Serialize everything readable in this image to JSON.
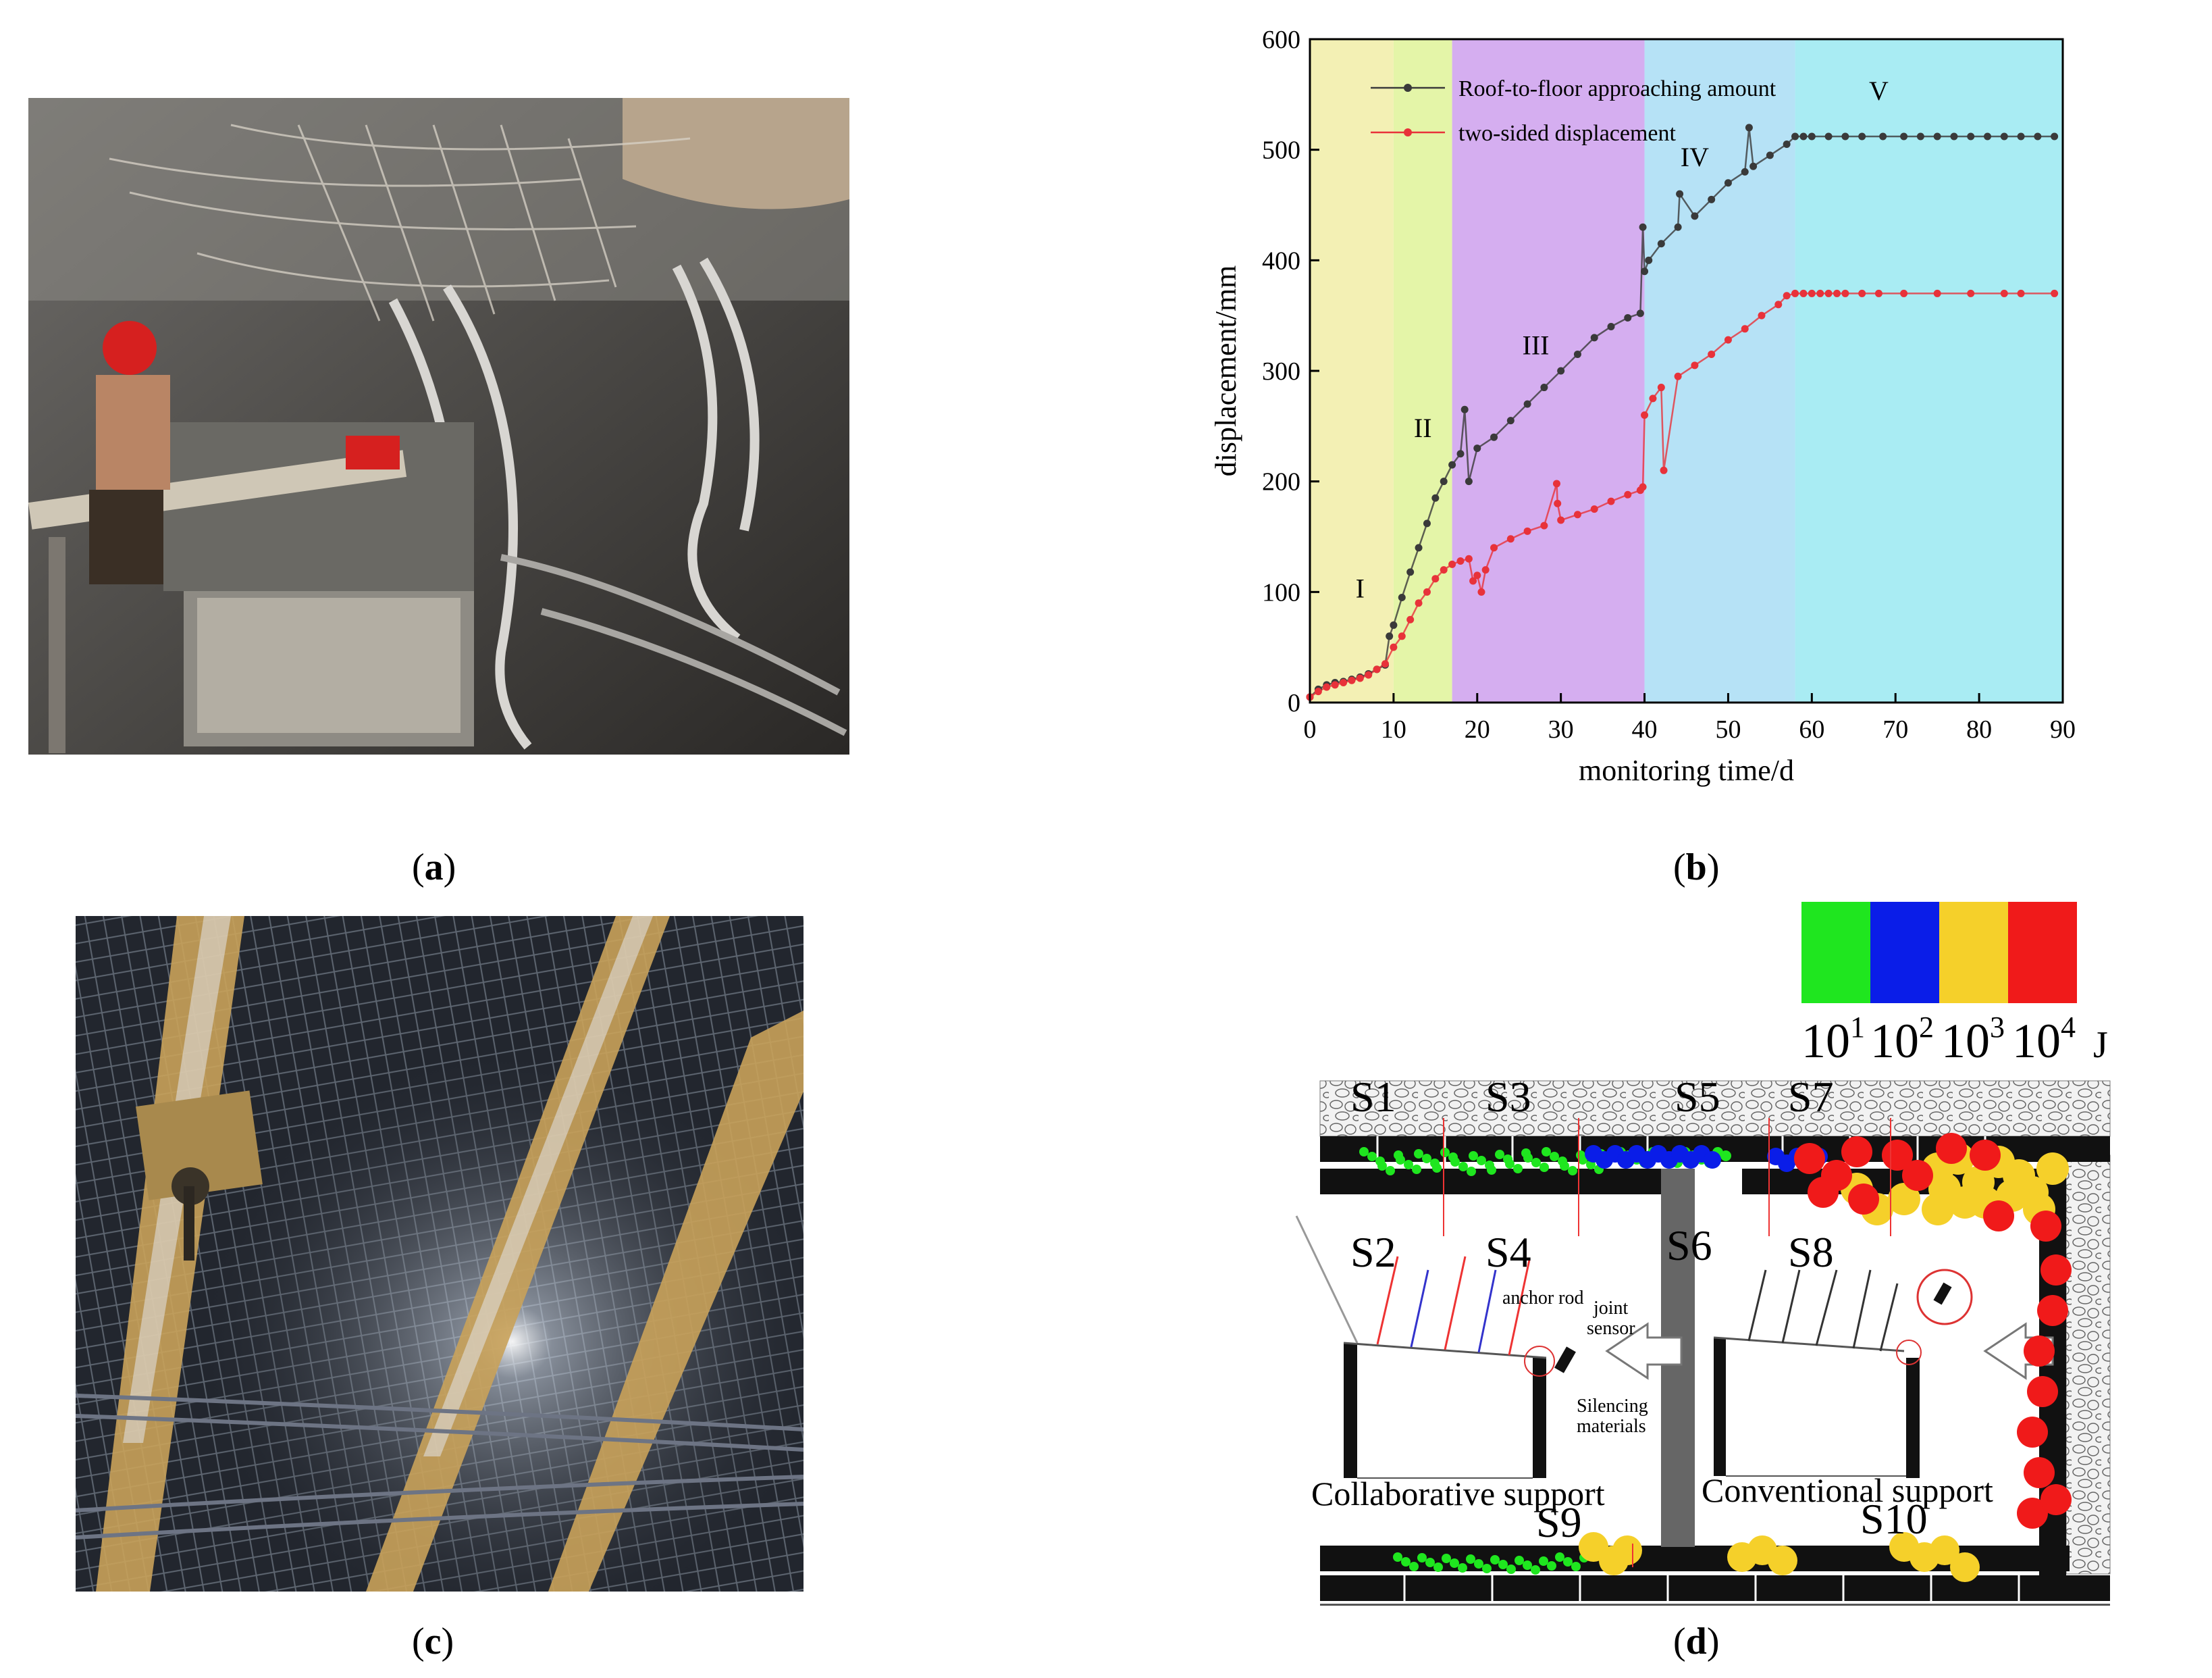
{
  "captions": {
    "a": {
      "open": "(",
      "letter": "a",
      "close": ")"
    },
    "b": {
      "open": "(",
      "letter": "b",
      "close": ")"
    },
    "c": {
      "open": "(",
      "letter": "c",
      "close": ")"
    },
    "d": {
      "open": "(",
      "letter": "d",
      "close": ")"
    }
  },
  "chart_data": {
    "type": "line",
    "xlabel": "monitoring time/d",
    "ylabel": "displacement/mm",
    "xlim": [
      0,
      90
    ],
    "ylim": [
      0,
      600
    ],
    "xticks": [
      0,
      10,
      20,
      30,
      40,
      50,
      60,
      70,
      80,
      90
    ],
    "yticks": [
      0,
      100,
      200,
      300,
      400,
      500,
      600
    ],
    "legend_position": "top-left",
    "stages": [
      {
        "label": "I",
        "x0": 0,
        "x1": 10,
        "color": "#f3f0b4",
        "label_x": 6,
        "label_y": 95
      },
      {
        "label": "II",
        "x0": 10,
        "x1": 17,
        "color": "#e4f5a8",
        "label_x": 13.5,
        "label_y": 240
      },
      {
        "label": "III",
        "x0": 17,
        "x1": 40,
        "color": "#d5aef0",
        "label_x": 27,
        "label_y": 315
      },
      {
        "label": "IV",
        "x0": 40,
        "x1": 58,
        "color": "#b6e2f6",
        "label_x": 46,
        "label_y": 485
      },
      {
        "label": "V",
        "x0": 58,
        "x1": 90,
        "color": "#a9ecf3",
        "label_x": 68,
        "label_y": 545
      }
    ],
    "series": [
      {
        "name": "Roof-to-floor approaching amount",
        "color": "#3a3a3a",
        "x": [
          0,
          1,
          2,
          3,
          4,
          5,
          6,
          7,
          8,
          9,
          9.5,
          10,
          11,
          12,
          13,
          14,
          15,
          16,
          17,
          18,
          18.5,
          19,
          20,
          22,
          24,
          26,
          28,
          30,
          32,
          34,
          36,
          38,
          39.5,
          39.8,
          40,
          40.5,
          42,
          44,
          44.2,
          46,
          48,
          50,
          52,
          52.5,
          53,
          55,
          57,
          58,
          59,
          60,
          62,
          64,
          66,
          68.5,
          71,
          73,
          75,
          77,
          79,
          81,
          83,
          85,
          87,
          89
        ],
        "y": [
          5,
          12,
          16,
          18,
          19,
          21,
          23,
          26,
          30,
          34,
          60,
          70,
          95,
          118,
          140,
          162,
          185,
          200,
          215,
          225,
          265,
          200,
          230,
          240,
          255,
          270,
          285,
          300,
          315,
          330,
          340,
          348,
          352,
          430,
          390,
          400,
          415,
          430,
          460,
          440,
          455,
          470,
          480,
          520,
          485,
          495,
          505,
          512,
          512,
          512,
          512,
          512,
          512,
          512,
          512,
          512,
          512,
          512,
          512,
          512,
          512,
          512,
          512,
          512
        ]
      },
      {
        "name": "two-sided displacement",
        "color": "#e8323a",
        "x": [
          0,
          1,
          2,
          3,
          4,
          5,
          6,
          7,
          8,
          9,
          10,
          11,
          12,
          13,
          14,
          15,
          16,
          17,
          18,
          19,
          19.5,
          20,
          20.5,
          21,
          22,
          24,
          26,
          28,
          29.5,
          29.6,
          30,
          32,
          34,
          36,
          38,
          39.5,
          39.8,
          40,
          41,
          42,
          42.3,
          44,
          46,
          48,
          50,
          52,
          54,
          56,
          57,
          58,
          59,
          60,
          61,
          62,
          63,
          64,
          66,
          68,
          71,
          75,
          79,
          83,
          85,
          89
        ],
        "y": [
          5,
          10,
          14,
          16,
          18,
          20,
          22,
          25,
          30,
          35,
          50,
          60,
          75,
          90,
          100,
          112,
          120,
          125,
          128,
          130,
          110,
          115,
          100,
          120,
          140,
          148,
          155,
          160,
          198,
          180,
          165,
          170,
          175,
          182,
          188,
          192,
          195,
          260,
          275,
          285,
          210,
          295,
          305,
          315,
          328,
          338,
          350,
          360,
          368,
          370,
          370,
          370,
          370,
          370,
          370,
          370,
          370,
          370,
          370,
          370,
          370,
          370,
          370,
          370
        ]
      }
    ]
  },
  "diagram_d": {
    "scale": {
      "labels": [
        "10",
        "10",
        "10",
        "10"
      ],
      "exponents": [
        "1",
        "2",
        "3",
        "4"
      ],
      "unit": "J",
      "colors": [
        "#1fe61f",
        "#0a1de8",
        "#f5d02a",
        "#f01a1a"
      ]
    },
    "sensor_labels": [
      "S1",
      "S2",
      "S3",
      "S4",
      "S5",
      "S6",
      "S7",
      "S8",
      "S9",
      "S10"
    ],
    "annotations": {
      "anchor_rod": "anchor rod",
      "joint": "joint",
      "sensor": "sensor",
      "silencing": "Silencing",
      "materials": "materials"
    },
    "left_label": "Collaborative support",
    "right_label": "Conventional support"
  }
}
